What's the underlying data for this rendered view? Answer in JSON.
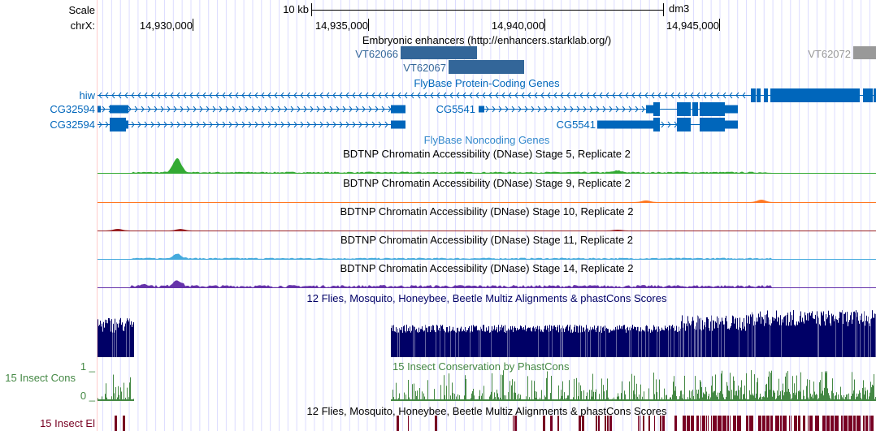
{
  "ruler": {
    "scale_label": "Scale",
    "scale_bar_label": "10 kb",
    "assembly": "dm3",
    "chrom_label": "chrX:",
    "ticks": [
      "14,930,000",
      "14,935,000",
      "14,940,000",
      "14,945,000"
    ]
  },
  "enhancers": {
    "title": "Embryonic enhancers (http://enhancers.starklab.org/)",
    "items": [
      "VT62066",
      "VT62067",
      "VT62072"
    ],
    "color": "#336699",
    "gray": "#999999"
  },
  "genes": {
    "title": "FlyBase Protein-Coding Genes",
    "color": "#0066bb",
    "items": [
      "hiw",
      "CG32594",
      "CG32594",
      "CG5541",
      "CG5541"
    ]
  },
  "noncoding": {
    "title": "FlyBase Noncoding Genes"
  },
  "dnase": [
    {
      "title": "BDTNP Chromatin Accessibility (DNase) Stage 5, Replicate 2",
      "color": "#33aa33"
    },
    {
      "title": "BDTNP Chromatin Accessibility (DNase) Stage 9, Replicate 2",
      "color": "#ff7722"
    },
    {
      "title": "BDTNP Chromatin Accessibility (DNase) Stage 10, Replicate 2",
      "color": "#991f22"
    },
    {
      "title": "BDTNP Chromatin Accessibility (DNase) Stage 11, Replicate 2",
      "color": "#44aadd"
    },
    {
      "title": "BDTNP Chromatin Accessibility (DNase) Stage 14, Replicate 2",
      "color": "#6633aa"
    }
  ],
  "conservation": {
    "title": "12 Flies, Mosquito, Honeybee, Beetle Multiz Alignments & phastCons Scores",
    "title_color": "#000066",
    "multiz_color": "#000066",
    "cons_label": "15 Insect Cons",
    "cons_title": "15 Insect Conservation by PhastCons",
    "cons_max": "1 _",
    "cons_min": "0 _",
    "cons_color": "#448844",
    "elements_title": "12 Flies, Mosquito, Honeybee, Beetle Multiz Alignments & phastCons Scores",
    "elements_label": "15 Insect El",
    "elements_color": "#770022"
  }
}
